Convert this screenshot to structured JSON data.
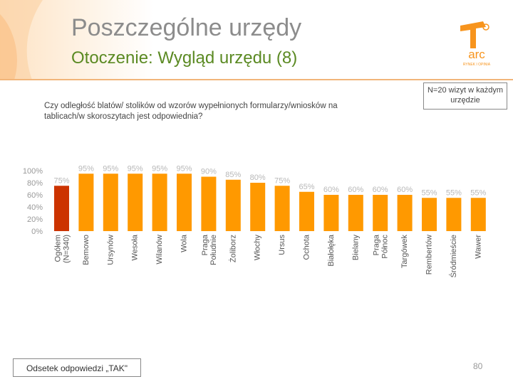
{
  "header": {
    "title": "Poszczególne urzędy",
    "subtitle": "Otoczenie: Wygląd urzędu (8)",
    "logo_text": "arc",
    "logo_subtext": "RYNEK I OPINIA"
  },
  "question": "Czy odległość blatów/ stolików od wzorów wypełnionych formularzy/wniosków na tablicach/w skoroszytach jest odpowiednia?",
  "sample_note": "N=20 wizyt w każdym urzędzie",
  "footnote": "Odsetek odpowiedzi „TAK\"",
  "page_number": "80",
  "colors": {
    "highlight": "#cc3300",
    "bar": "#ff9900",
    "value_label": "#b8b8b8",
    "title": "#8c8c8c",
    "subtitle": "#5b8a23"
  },
  "chart_data": {
    "type": "bar",
    "categories": [
      "Ogółem (N=340)",
      "Bemowo",
      "Ursynów",
      "Wesoła",
      "Wilanów",
      "Wola",
      "Praga Południe",
      "Żoliborz",
      "Włochy",
      "Ursus",
      "Ochota",
      "Białołęka",
      "Bielany",
      "Praga Północ",
      "Targówek",
      "Rembertów",
      "Śródmieście",
      "Wawer"
    ],
    "values": [
      75,
      95,
      95,
      95,
      95,
      95,
      90,
      85,
      80,
      75,
      65,
      60,
      60,
      60,
      60,
      55,
      55,
      55
    ],
    "value_labels": [
      "75%",
      "95%",
      "95%",
      "95%",
      "95%",
      "95%",
      "90%",
      "85%",
      "80%",
      "75%",
      "65%",
      "60%",
      "60%",
      "60%",
      "60%",
      "55%",
      "55%",
      "55%"
    ],
    "highlight_index": 0,
    "yticks": [
      "0%",
      "20%",
      "40%",
      "60%",
      "80%",
      "100%"
    ],
    "ylim": [
      0,
      100
    ],
    "grid": false
  }
}
